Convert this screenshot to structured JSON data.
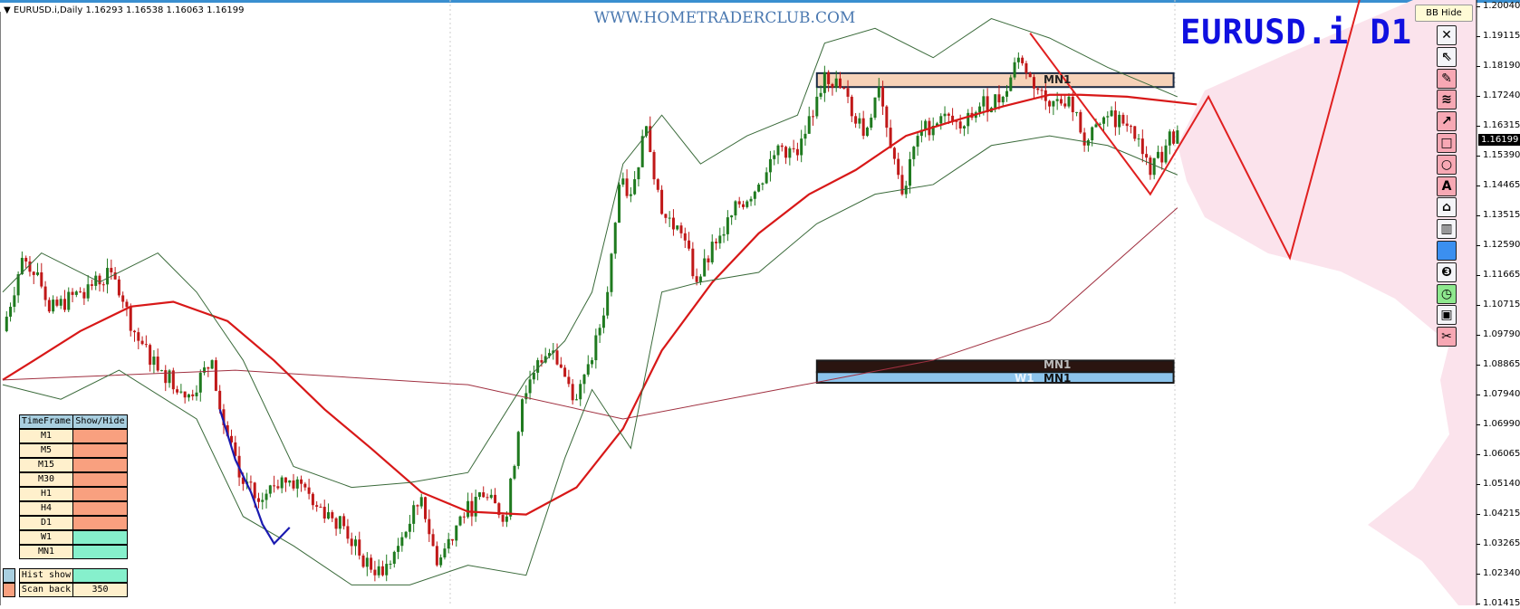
{
  "header": {
    "symbol_tf": "EURUSD.i,Daily",
    "ohlc": "1.16293 1.16538 1.16063 1.16199"
  },
  "watermark": "WWW.HOMETRADERCLUB.COM",
  "symbol_label": "EURUSD.i D1",
  "tooltip": "BB Hide",
  "toolbar": [
    {
      "icon": "close-icon",
      "glyph": "✕",
      "bg": "#f4f4f8"
    },
    {
      "icon": "cursor-arrow-icon",
      "glyph": "⇖",
      "bg": "#f4f4f8"
    },
    {
      "icon": "pencil-icon",
      "glyph": "✎",
      "bg": "#f7a8b4"
    },
    {
      "icon": "wave-lines-icon",
      "glyph": "≋",
      "bg": "#f7a8b4"
    },
    {
      "icon": "arrow-up-right-icon",
      "glyph": "↗",
      "bg": "#f7a8b4"
    },
    {
      "icon": "rectangle-icon",
      "glyph": "□",
      "bg": "#f7a8b4"
    },
    {
      "icon": "circle-icon",
      "glyph": "○",
      "bg": "#f7a8b4"
    },
    {
      "icon": "text-icon",
      "glyph": "A",
      "bg": "#f7a8b4"
    },
    {
      "icon": "price-tag-icon",
      "glyph": "⌂",
      "bg": "#f4f4f8"
    },
    {
      "icon": "trash-icon",
      "glyph": "▥",
      "bg": "#f4f4f8"
    },
    {
      "icon": "color-swatch-icon",
      "glyph": "",
      "bg": "#3b8ff0"
    },
    {
      "icon": "number-three-icon",
      "glyph": "❸",
      "bg": "#f4f4f8"
    },
    {
      "icon": "clock-icon",
      "glyph": "◷",
      "bg": "#8ee88e"
    },
    {
      "icon": "save-icon",
      "glyph": "▣",
      "bg": "#f4f4f8"
    },
    {
      "icon": "scissors-icon",
      "glyph": "✂",
      "bg": "#f7a8b4"
    }
  ],
  "price_axis": {
    "ticks": [
      "1.20040",
      "1.19115",
      "1.18190",
      "1.17240",
      "1.16315",
      "1.15390",
      "1.14465",
      "1.13515",
      "1.12590",
      "1.11665",
      "1.10715",
      "1.09790",
      "1.08865",
      "1.07940",
      "1.06990",
      "1.06065",
      "1.05140",
      "1.04215",
      "1.03265",
      "1.02340",
      "1.01415"
    ],
    "current": "1.16199"
  },
  "timeframe_panel": {
    "headers": [
      "TimeFrame",
      "Show/Hide"
    ],
    "rows": [
      {
        "tf": "M1",
        "state": "hide",
        "color": "#f9a07f"
      },
      {
        "tf": "M5",
        "state": "hide",
        "color": "#f9a07f"
      },
      {
        "tf": "M15",
        "state": "hide",
        "color": "#f9a07f"
      },
      {
        "tf": "M30",
        "state": "hide",
        "color": "#f9a07f"
      },
      {
        "tf": "H1",
        "state": "hide",
        "color": "#f9a07f"
      },
      {
        "tf": "H4",
        "state": "hide",
        "color": "#f9a07f"
      },
      {
        "tf": "D1",
        "state": "hide",
        "color": "#f9a07f"
      },
      {
        "tf": "W1",
        "state": "show",
        "color": "#86f0cc"
      },
      {
        "tf": "MN1",
        "state": "show",
        "color": "#86f0cc"
      }
    ],
    "hist_show_label": "Hist show",
    "scan_back_label": "Scan back",
    "scan_back_value": "350"
  },
  "chart_data": {
    "type": "candlestick",
    "symbol": "EURUSD.i",
    "timeframe": "D1",
    "ylim": [
      1.01415,
      1.2004
    ],
    "grid": false,
    "close": [
      [
        0,
        1.0998
      ],
      [
        5,
        1.1225
      ],
      [
        9,
        1.118
      ],
      [
        12,
        1.1059
      ],
      [
        20,
        1.1119
      ],
      [
        28,
        1.118
      ],
      [
        31,
        1.1089
      ],
      [
        35,
        1.0968
      ],
      [
        41,
        1.0877
      ],
      [
        48,
        1.0802
      ],
      [
        54,
        1.0908
      ],
      [
        56,
        1.0756
      ],
      [
        61,
        1.0545
      ],
      [
        66,
        1.0469
      ],
      [
        72,
        1.0545
      ],
      [
        78,
        1.0514
      ],
      [
        82,
        1.0454
      ],
      [
        88,
        1.0394
      ],
      [
        92,
        1.0303
      ],
      [
        98,
        1.0242
      ],
      [
        102,
        1.0333
      ],
      [
        108,
        1.0484
      ],
      [
        112,
        1.0273
      ],
      [
        118,
        1.0424
      ],
      [
        124,
        1.0484
      ],
      [
        130,
        1.0424
      ],
      [
        134,
        1.0787
      ],
      [
        138,
        1.0908
      ],
      [
        142,
        1.0938
      ],
      [
        148,
        1.0787
      ],
      [
        152,
        1.0908
      ],
      [
        156,
        1.1119
      ],
      [
        159,
        1.1452
      ],
      [
        162,
        1.1422
      ],
      [
        166,
        1.1633
      ],
      [
        170,
        1.1361
      ],
      [
        175,
        1.1301
      ],
      [
        179,
        1.115
      ],
      [
        184,
        1.127
      ],
      [
        190,
        1.1391
      ],
      [
        195,
        1.1452
      ],
      [
        200,
        1.1573
      ],
      [
        205,
        1.1543
      ],
      [
        210,
        1.1724
      ],
      [
        212,
        1.18
      ],
      [
        218,
        1.1724
      ],
      [
        222,
        1.1603
      ],
      [
        226,
        1.1754
      ],
      [
        231,
        1.1482
      ],
      [
        232,
        1.1422
      ],
      [
        236,
        1.1603
      ],
      [
        242,
        1.1664
      ],
      [
        248,
        1.1633
      ],
      [
        252,
        1.1694
      ],
      [
        258,
        1.1724
      ],
      [
        262,
        1.1845
      ],
      [
        265,
        1.1785
      ],
      [
        270,
        1.1694
      ],
      [
        275,
        1.1724
      ],
      [
        279,
        1.1573
      ],
      [
        285,
        1.1664
      ],
      [
        291,
        1.1633
      ],
      [
        296,
        1.1482
      ],
      [
        300,
        1.1573
      ],
      [
        303,
        1.16199
      ]
    ],
    "lines": [
      {
        "id": "ma-red",
        "color": "#d81818",
        "values": [
          [
            0,
            1.0847
          ],
          [
            8,
            1.0907
          ],
          [
            20,
            1.0998
          ],
          [
            33,
            1.1074
          ],
          [
            44,
            1.1089
          ],
          [
            58,
            1.1029
          ],
          [
            70,
            1.0907
          ],
          [
            83,
            1.0756
          ],
          [
            95,
            1.0635
          ],
          [
            108,
            1.0499
          ],
          [
            120,
            1.0439
          ],
          [
            135,
            1.043
          ],
          [
            148,
            1.0514
          ],
          [
            160,
            1.0696
          ],
          [
            170,
            1.0938
          ],
          [
            183,
            1.1149
          ],
          [
            195,
            1.1301
          ],
          [
            208,
            1.1422
          ],
          [
            220,
            1.1497
          ],
          [
            233,
            1.1603
          ],
          [
            245,
            1.1648
          ],
          [
            258,
            1.1694
          ],
          [
            270,
            1.173
          ],
          [
            278,
            1.173
          ],
          [
            290,
            1.1724
          ],
          [
            308,
            1.17
          ]
        ]
      },
      {
        "id": "ma-long",
        "color": "#a03040",
        "values": [
          [
            0,
            1.0847
          ],
          [
            60,
            1.0877
          ],
          [
            120,
            1.0832
          ],
          [
            160,
            1.0726
          ],
          [
            200,
            1.0817
          ],
          [
            240,
            1.0908
          ],
          [
            270,
            1.1029
          ],
          [
            303,
            1.138
          ]
        ]
      },
      {
        "id": "bb-upper",
        "color": "#3a6a3a",
        "values": [
          [
            0,
            1.1119
          ],
          [
            10,
            1.124
          ],
          [
            25,
            1.115
          ],
          [
            40,
            1.124
          ],
          [
            50,
            1.1119
          ],
          [
            62,
            1.0908
          ],
          [
            75,
            1.0579
          ],
          [
            90,
            1.0514
          ],
          [
            105,
            1.0529
          ],
          [
            120,
            1.056
          ],
          [
            135,
            1.0847
          ],
          [
            145,
            1.0968
          ],
          [
            152,
            1.1119
          ],
          [
            160,
            1.1516
          ],
          [
            170,
            1.1667
          ],
          [
            180,
            1.1516
          ],
          [
            192,
            1.1603
          ],
          [
            205,
            1.1667
          ],
          [
            212,
            1.189
          ],
          [
            225,
            1.1936
          ],
          [
            240,
            1.1845
          ],
          [
            255,
            1.1966
          ],
          [
            270,
            1.1906
          ],
          [
            285,
            1.1815
          ],
          [
            303,
            1.1724
          ]
        ]
      },
      {
        "id": "bb-lower",
        "color": "#3a6a3a",
        "values": [
          [
            0,
            1.0832
          ],
          [
            15,
            1.0787
          ],
          [
            30,
            1.0877
          ],
          [
            50,
            1.0726
          ],
          [
            62,
            1.0424
          ],
          [
            75,
            1.0333
          ],
          [
            90,
            1.0212
          ],
          [
            105,
            1.0212
          ],
          [
            120,
            1.0273
          ],
          [
            135,
            1.0242
          ],
          [
            145,
            1.0605
          ],
          [
            152,
            1.0817
          ],
          [
            162,
            1.0635
          ],
          [
            170,
            1.1119
          ],
          [
            180,
            1.115
          ],
          [
            195,
            1.118
          ],
          [
            210,
            1.1331
          ],
          [
            225,
            1.1422
          ],
          [
            240,
            1.1452
          ],
          [
            255,
            1.1573
          ],
          [
            270,
            1.1603
          ],
          [
            285,
            1.1573
          ],
          [
            303,
            1.1482
          ]
        ]
      },
      {
        "id": "ma-blue-segment",
        "color": "#1a1ab0",
        "values": [
          [
            56,
            1.0756
          ],
          [
            60,
            1.06
          ],
          [
            64,
            1.05
          ],
          [
            67,
            1.04
          ],
          [
            70,
            1.034
          ],
          [
            74,
            1.039
          ]
        ]
      },
      {
        "id": "zigzag-projection",
        "color": "#e02020",
        "values": [
          [
            265,
            1.1921
          ],
          [
            296,
            1.1422
          ],
          [
            311,
            1.1724
          ],
          [
            332,
            1.1225
          ],
          [
            350,
            1.2026
          ]
        ]
      }
    ],
    "zones": [
      {
        "label": "MN1",
        "from_bar": 210,
        "to_bar": 302,
        "top": 1.1797,
        "bottom": 1.1754,
        "fill": "#f6d2b8",
        "border": "#1a2a44"
      },
      {
        "label": "MN1",
        "from_bar": 210,
        "to_bar": 302,
        "top": 1.0907,
        "bottom": 1.0871,
        "fill": "#2a1510",
        "border": "#1a1a1a"
      },
      {
        "label": "W1",
        "label2": "MN1",
        "from_bar": 210,
        "to_bar": 302,
        "top": 1.0871,
        "bottom": 1.0838,
        "fill": "#8cc4ec",
        "border": "#1a1a1a"
      }
    ],
    "colors": {
      "bull": "#1f7a1f",
      "bear": "#c01818",
      "volume_profile": "#fbe3ec"
    }
  }
}
